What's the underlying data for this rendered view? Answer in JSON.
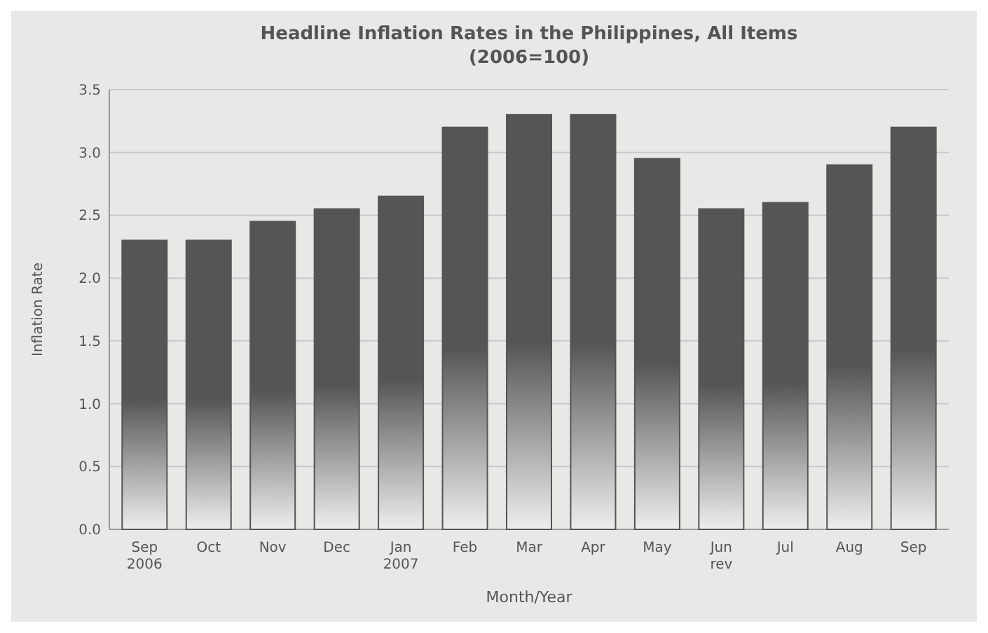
{
  "chart_data": {
    "type": "bar",
    "title": "Headline Inflation Rates in the Philippines, All Items\n(2006=100)",
    "xlabel": "Month/Year",
    "ylabel": "Inflation Rate",
    "categories": [
      "Sep\n2006",
      "Oct",
      "Nov",
      "Dec",
      "Jan\n2007",
      "Feb",
      "Mar",
      "Apr",
      "May",
      "Jun\nrev",
      "Jul",
      "Aug",
      "Sep"
    ],
    "values": [
      2.3,
      2.3,
      2.45,
      2.55,
      2.65,
      3.2,
      3.3,
      3.3,
      2.95,
      2.55,
      2.6,
      2.9,
      3.2
    ],
    "color": "#555555",
    "ylim": [
      0,
      3.5
    ],
    "yticks": [
      {
        "value": 0,
        "label": "0.0"
      },
      {
        "value": 0.5,
        "label": "0.5"
      },
      {
        "value": 1,
        "label": "1.0"
      },
      {
        "value": 1.5,
        "label": "1.5"
      },
      {
        "value": 2,
        "label": "2.0"
      },
      {
        "value": 2.5,
        "label": "2.5"
      },
      {
        "value": 3,
        "label": "3.0"
      },
      {
        "value": 3.5,
        "label": "3.5"
      }
    ],
    "grid": "y"
  }
}
